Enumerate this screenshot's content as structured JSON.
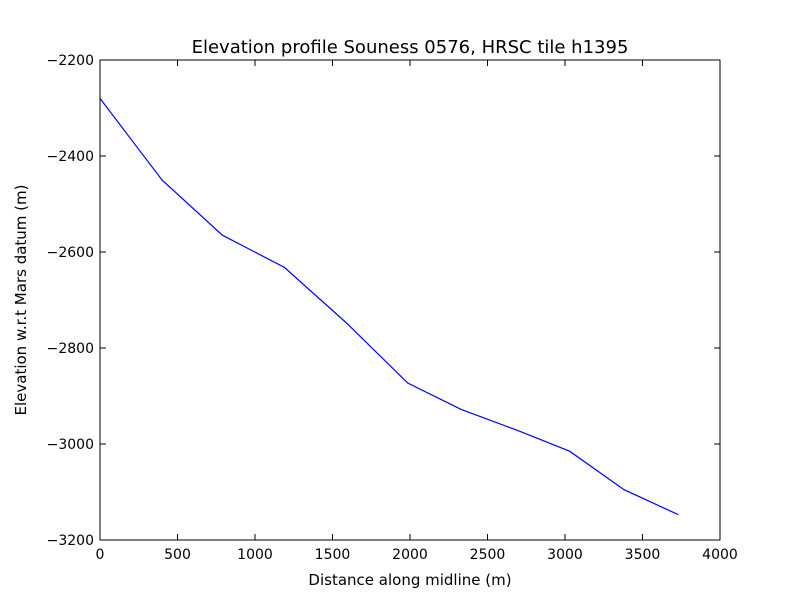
{
  "chart_data": {
    "type": "line",
    "title": "Elevation profile Souness 0576, HRSC tile h1395",
    "xlabel": "Distance along midline (m)",
    "ylabel": "Elevation w.r.t Mars datum (m)",
    "xlim": [
      0,
      4000
    ],
    "ylim": [
      -3200,
      -2200
    ],
    "xticks": [
      0,
      500,
      1000,
      1500,
      2000,
      2500,
      3000,
      3500,
      4000
    ],
    "xtick_labels": [
      "0",
      "500",
      "1000",
      "1500",
      "2000",
      "2500",
      "3000",
      "3500",
      "4000"
    ],
    "yticks": [
      -2200,
      -2400,
      -2600,
      -2800,
      -3000,
      -3200
    ],
    "ytick_labels": [
      "−2200",
      "−2400",
      "−2600",
      "−2800",
      "−3000",
      "−3200"
    ],
    "grid": false,
    "series": [
      {
        "color": "#0000ff",
        "x": [
          0,
          400,
          790,
          1190,
          1590,
          1985,
          2330,
          2680,
          3030,
          3380,
          3730
        ],
        "y": [
          -2280,
          -2450,
          -2565,
          -2632,
          -2748,
          -2873,
          -2928,
          -2970,
          -3015,
          -3095,
          -3147
        ]
      }
    ]
  }
}
